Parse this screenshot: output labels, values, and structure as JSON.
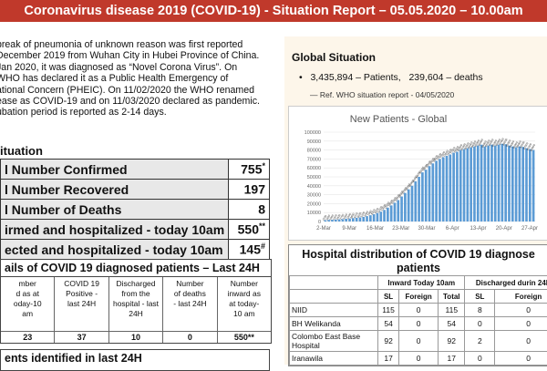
{
  "header": {
    "title": "Coronavirus disease 2019 (COVID-19) - Situation Report – 05.05.2020 – 10.00am"
  },
  "intro": {
    "lines": [
      "break of pneumonia of unknown reason was first reported",
      "December 2019 from Wuhan City in Hubei Province of China.",
      "Jan 2020, it was diagnosed as “Novel Corona Virus”. On",
      "WHO has declared it as a Public Health Emergency of",
      "ational Concern (PHEIC). On 11/02/2020 the WHO renamed",
      "ease as COVID-19 and on 11/03/2020 declared as pandemic.",
      "ubation period is reported as 2-14 days."
    ]
  },
  "situation": {
    "heading": "ituation",
    "rows": [
      {
        "label": "l Number Confirmed",
        "value": "755",
        "mark": "*"
      },
      {
        "label": "l Number Recovered",
        "value": "197",
        "mark": ""
      },
      {
        "label": "l Number of Deaths",
        "value": "8",
        "mark": ""
      },
      {
        "label": "irmed and hospitalized - today 10am",
        "value": "550",
        "mark": "**"
      },
      {
        "label": "ected and hospitalized - today 10am",
        "value": "145",
        "mark": "#"
      }
    ]
  },
  "details": {
    "heading": "ails of COVID 19 diagnosed patients – Last 24H",
    "columns": [
      "mber\nd as at\noday-10\nam",
      "COVID 19\nPositive -\nlast 24H",
      "Discharged\nfrom the\nhospital - last\n24H",
      "Number\nof deaths\n- last 24H",
      "Number\ninward as\nat today-\n10 am"
    ],
    "values": [
      "23",
      "37",
      "10",
      "0",
      "550**"
    ]
  },
  "patients_heading": "ents identified in last 24H",
  "global": {
    "title": "Global Situation",
    "patients": "3,435,894 – Patients,",
    "deaths": "239,604 – deaths",
    "ref": "— Ref. WHO situation report - 04/05/2020"
  },
  "chart_data": {
    "type": "bar",
    "title": "New Patients - Global",
    "x_tick_labels": [
      "2-Mar",
      "9-Mar",
      "16-Mar",
      "23-Mar",
      "30-Mar",
      "6-Apr",
      "13-Apr",
      "20-Apr",
      "27-Apr"
    ],
    "y_tick_labels": [
      "0",
      "10000",
      "20000",
      "30000",
      "40000",
      "50000",
      "60000",
      "70000",
      "80000",
      "90000",
      "100000"
    ],
    "ylim": [
      0,
      100000
    ],
    "values": [
      1500,
      1800,
      2000,
      2200,
      2400,
      2700,
      3000,
      3400,
      3800,
      4200,
      4600,
      5200,
      6000,
      7000,
      8200,
      9500,
      11000,
      13000,
      15500,
      18000,
      21000,
      24000,
      28000,
      32000,
      36000,
      40000,
      45000,
      50000,
      55000,
      58000,
      62000,
      65000,
      68000,
      70000,
      72000,
      73500,
      75000,
      77000,
      78000,
      80000,
      81000,
      82000,
      83000,
      84000,
      85000,
      86000,
      84000,
      85000,
      86000,
      85000,
      86000,
      87000,
      86500,
      85000,
      84000,
      83000,
      84000,
      83500,
      82000,
      81000,
      80000
    ],
    "color": "#5b9bd5",
    "label_color": "#333333"
  },
  "hospitals": {
    "title_line1": "Hospital distribution of COVID 19 diagnose",
    "title_line2": "patients",
    "group_inward": "Inward Today 10am",
    "group_discharged": "Discharged durin 24H",
    "sub": [
      "SL",
      "Foreign",
      "Total",
      "SL",
      "Foreign"
    ],
    "rows": [
      {
        "name": "NIID",
        "v": [
          "115",
          "0",
          "115",
          "8",
          "0"
        ]
      },
      {
        "name": "BH Welikanda",
        "v": [
          "54",
          "0",
          "54",
          "0",
          "0"
        ]
      },
      {
        "name": "Colombo East Base Hospital",
        "v": [
          "92",
          "0",
          "92",
          "2",
          "0"
        ]
      },
      {
        "name": "Iranawila",
        "v": [
          "17",
          "0",
          "17",
          "0",
          "0"
        ]
      }
    ]
  }
}
